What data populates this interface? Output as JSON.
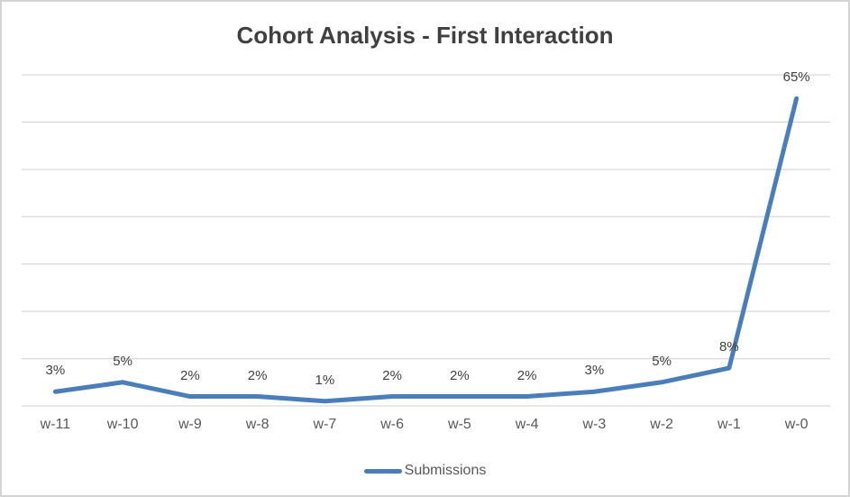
{
  "chart_data": {
    "type": "line",
    "title": "Cohort Analysis - First Interaction",
    "categories": [
      "w-11",
      "w-10",
      "w-9",
      "w-8",
      "w-7",
      "w-6",
      "w-5",
      "w-4",
      "w-3",
      "w-2",
      "w-1",
      "w-0"
    ],
    "series": [
      {
        "name": "Submissions",
        "values": [
          3,
          5,
          2,
          2,
          1,
          2,
          2,
          2,
          3,
          5,
          8,
          65
        ],
        "data_labels": [
          "3%",
          "5%",
          "2%",
          "2%",
          "1%",
          "2%",
          "2%",
          "2%",
          "3%",
          "5%",
          "8%",
          "65%"
        ],
        "color": "#4a7ebb"
      }
    ],
    "xlabel": "",
    "ylabel": "",
    "ylim": [
      0,
      70
    ],
    "gridline_step": 10,
    "grid": true,
    "y_axis_tick_labels_visible": false,
    "legend_position": "bottom",
    "colors": {
      "line": "#4a7ebb",
      "gridline": "#d9d9d9",
      "title_text": "#404040",
      "data_label_text": "#404040",
      "axis_text": "#595959",
      "legend_text": "#595959",
      "background": "#ffffff",
      "border": "#d4d4d4"
    }
  }
}
